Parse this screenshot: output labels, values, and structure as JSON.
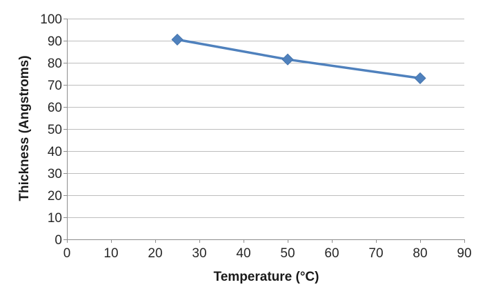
{
  "chart_data": {
    "type": "line",
    "title": "",
    "xlabel": "Temperature (°C)",
    "ylabel": "Thickness (Angstroms)",
    "xlim": [
      0,
      90
    ],
    "ylim": [
      0,
      100
    ],
    "xticks": [
      "0",
      "10",
      "20",
      "30",
      "40",
      "50",
      "60",
      "70",
      "80",
      "90"
    ],
    "yticks": [
      "0",
      "10",
      "20",
      "30",
      "40",
      "50",
      "60",
      "70",
      "80",
      "90",
      "100"
    ],
    "grid": true,
    "legend": "none",
    "series": [
      {
        "x": [
          25,
          50,
          80
        ],
        "y": [
          90.5,
          81.5,
          73
        ]
      }
    ],
    "colors": {
      "series": "#4f81bd",
      "grid": "#bdbdbd",
      "axis": "#8c8c8c",
      "text": "#262626"
    }
  }
}
